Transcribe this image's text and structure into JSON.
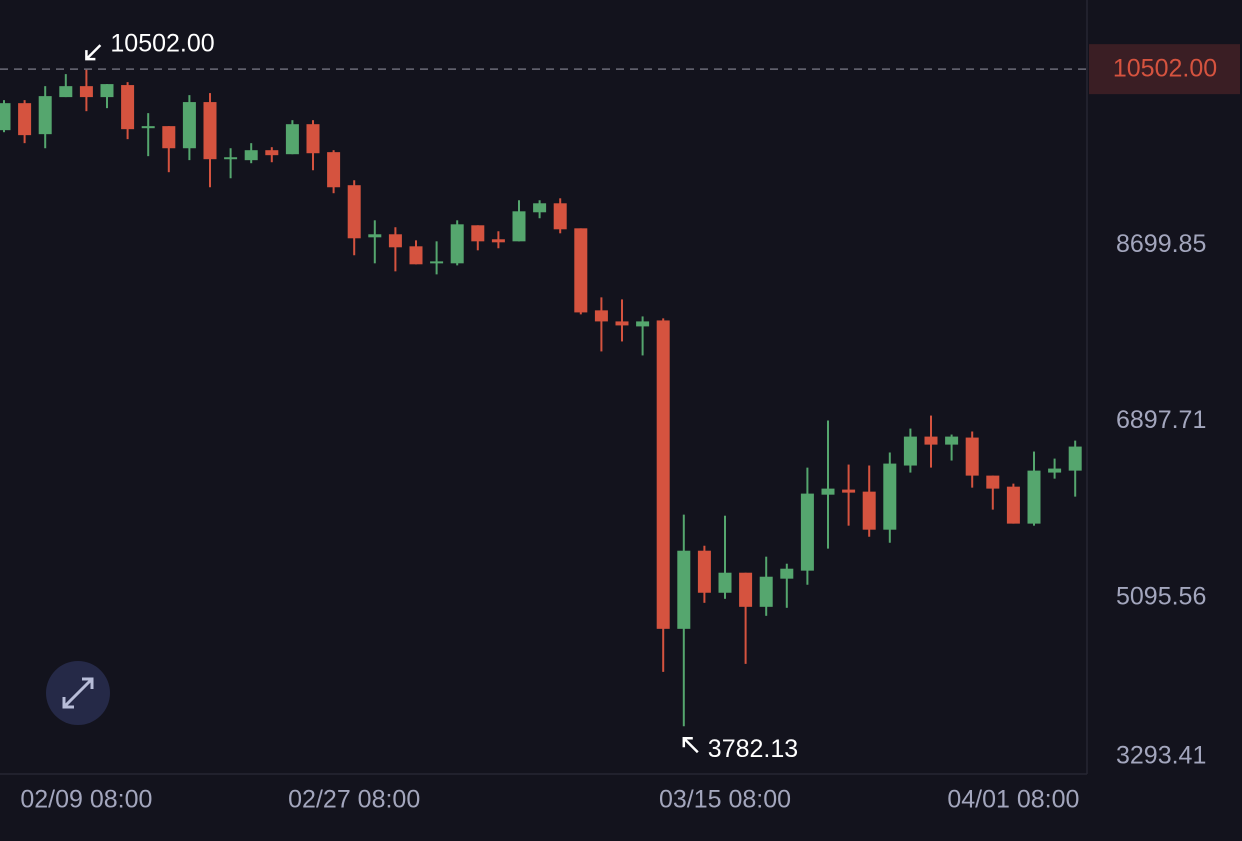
{
  "chart_data": {
    "type": "candlestick",
    "categories": [
      null,
      null,
      null,
      null,
      "02/09 08:00",
      null,
      null,
      null,
      null,
      null,
      null,
      null,
      null,
      null,
      null,
      null,
      null,
      "02/27 08:00",
      null,
      null,
      null,
      null,
      null,
      null,
      null,
      null,
      null,
      null,
      null,
      null,
      null,
      null,
      null,
      null,
      null,
      "03/15 08:00",
      null,
      null,
      null,
      null,
      null,
      null,
      null,
      null,
      null,
      null,
      null,
      null,
      null,
      "04/01 08:00",
      null,
      null,
      null
    ],
    "open": [
      9878,
      10154,
      9837,
      10216,
      10328,
      10216,
      10339,
      9898,
      9919,
      9693,
      10165,
      9581,
      9571,
      9673,
      9632,
      9939,
      9653,
      9315,
      8782,
      8813,
      8690,
      8516,
      8516,
      8905,
      8762,
      8741,
      9038,
      9130,
      8874,
      8035,
      7922,
      7871,
      7932,
      4778,
      5577,
      5147,
      5352,
      5003,
      5291,
      5373,
      6150,
      6202,
      6181,
      5792,
      6448,
      6744,
      6662,
      6734,
      6345,
      6232,
      5854,
      6376,
      6396
    ],
    "high": [
      10185,
      10185,
      10328,
      10451,
      10502,
      10349,
      10369,
      10052,
      9919,
      10236,
      10257,
      9693,
      9745,
      9704,
      9980,
      9980,
      9673,
      9366,
      8956,
      8885,
      8751,
      8741,
      8956,
      8905,
      8844,
      9161,
      9161,
      9181,
      8874,
      8168,
      8147,
      7973,
      7953,
      5946,
      5628,
      5935,
      5352,
      5516,
      5444,
      6427,
      6908,
      6458,
      6448,
      6581,
      6826,
      6959,
      6765,
      6796,
      6345,
      6263,
      6591,
      6519,
      6703
    ],
    "low": [
      9857,
      9745,
      9693,
      10216,
      10072,
      10103,
      9786,
      9612,
      9448,
      9571,
      9294,
      9386,
      9540,
      9550,
      9632,
      9468,
      9233,
      8598,
      8516,
      8434,
      8506,
      8403,
      8495,
      8649,
      8670,
      8741,
      8977,
      8823,
      7994,
      7615,
      7717,
      7574,
      4338,
      3782.13,
      5044,
      5085,
      4420,
      4911,
      4993,
      5229,
      5598,
      5833,
      5720,
      5659,
      6376,
      6427,
      6499,
      6222,
      5997,
      5854,
      5833,
      6314,
      6130
    ],
    "close": [
      10154,
      9827,
      10226,
      10328,
      10216,
      10349,
      9888,
      9919,
      9693,
      10165,
      9581,
      9601,
      9673,
      9622,
      9939,
      9642,
      9294,
      8772,
      8813,
      8680,
      8506,
      8536,
      8915,
      8741,
      8731,
      9048,
      9130,
      8864,
      8014,
      7922,
      7881,
      7922,
      4778,
      5577,
      5147,
      5352,
      5003,
      5311,
      5393,
      6161,
      6212,
      6171,
      5792,
      6468,
      6744,
      6662,
      6744,
      6345,
      6212,
      5854,
      6396,
      6417,
      6642
    ],
    "up_color": "#55a66e",
    "down_color": "#d5533f",
    "ylim": [
      3293.41,
      11209
    ],
    "yticks": [
      3293.41,
      5095.56,
      6897.71,
      8699.85
    ],
    "max_label": "10502.00",
    "min_label": "3782.13"
  }
}
